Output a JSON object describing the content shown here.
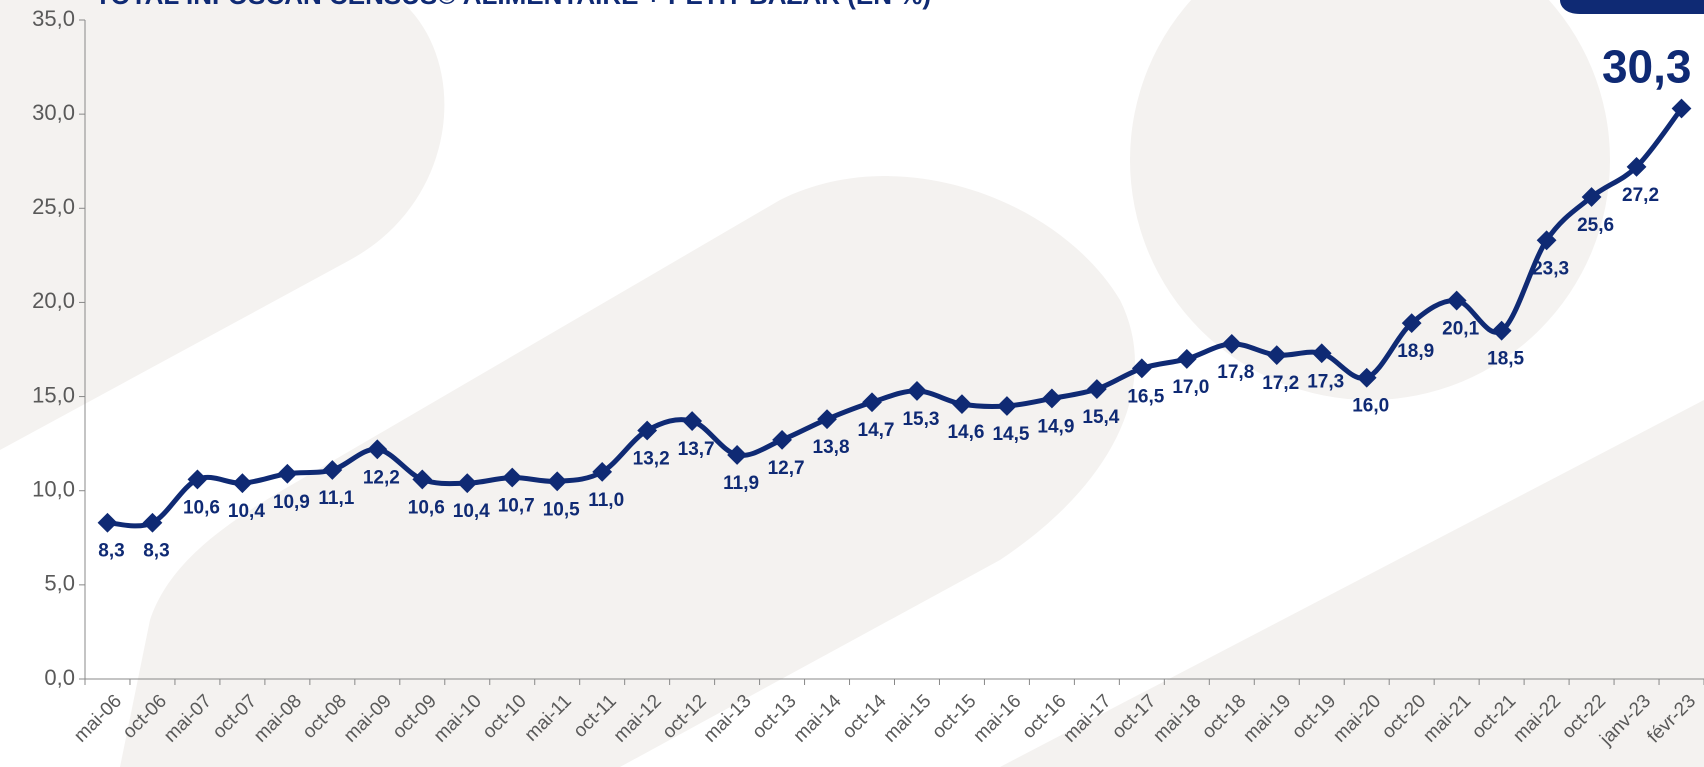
{
  "chart_data": {
    "type": "line",
    "title": "TOTAL INFOSCAN CENSUS© ALIMENTAIRE + PETIT BAZAR (EN %)",
    "categories": [
      "mai-06",
      "oct-06",
      "mai-07",
      "oct-07",
      "mai-08",
      "oct-08",
      "mai-09",
      "oct-09",
      "mai-10",
      "oct-10",
      "mai-11",
      "oct-11",
      "mai-12",
      "oct-12",
      "mai-13",
      "oct-13",
      "mai-14",
      "oct-14",
      "mai-15",
      "oct-15",
      "mai-16",
      "oct-16",
      "mai-17",
      "oct-17",
      "mai-18",
      "oct-18",
      "mai-19",
      "oct-19",
      "mai-20",
      "oct-20",
      "mai-21",
      "oct-21",
      "mai-22",
      "oct-22",
      "janv-23",
      "févr-23"
    ],
    "values": [
      8.3,
      8.3,
      10.6,
      10.4,
      10.9,
      11.1,
      12.2,
      10.6,
      10.4,
      10.7,
      10.5,
      11.0,
      13.2,
      13.7,
      11.9,
      12.7,
      13.8,
      14.7,
      15.3,
      14.6,
      14.5,
      14.9,
      15.4,
      16.5,
      17.0,
      17.8,
      17.2,
      17.3,
      16.0,
      18.9,
      20.1,
      18.5,
      23.3,
      25.6,
      27.2,
      30.3
    ],
    "value_labels": [
      "8,3",
      "8,3",
      "10,6",
      "10,4",
      "10,9",
      "11,1",
      "12,2",
      "10,6",
      "10,4",
      "10,7",
      "10,5",
      "11,0",
      "13,2",
      "13,7",
      "11,9",
      "12,7",
      "13,8",
      "14,7",
      "15,3",
      "14,6",
      "14,5",
      "14,9",
      "15,4",
      "16,5",
      "17,0",
      "17,8",
      "17,2",
      "17,3",
      "16,0",
      "18,9",
      "20,1",
      "18,5",
      "23,3",
      "25,6",
      "27,2",
      "30,3"
    ],
    "color": "#0f2a74",
    "ylim": [
      0,
      35
    ],
    "yticks": [
      {
        "value": 0,
        "label": "0,0"
      },
      {
        "value": 5,
        "label": "5,0"
      },
      {
        "value": 10,
        "label": "10,0"
      },
      {
        "value": 15,
        "label": "15,0"
      },
      {
        "value": 20,
        "label": "20,0"
      },
      {
        "value": 25,
        "label": "25,0"
      },
      {
        "value": 30,
        "label": "30,0"
      },
      {
        "value": 35,
        "label": "35,0"
      }
    ]
  }
}
